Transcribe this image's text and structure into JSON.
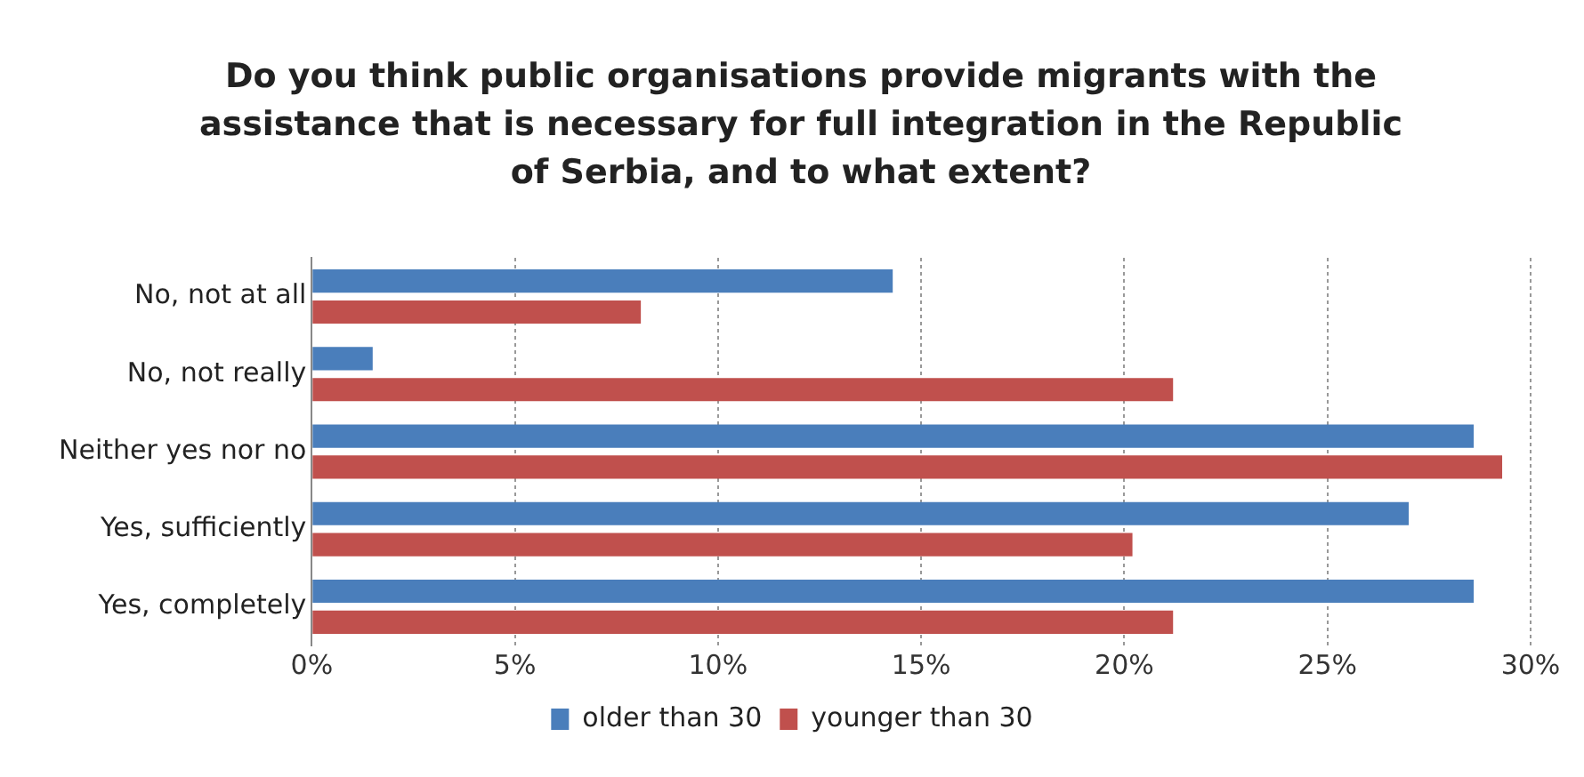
{
  "chart_data": {
    "type": "bar",
    "orientation": "horizontal",
    "title": "Do you think public organisations provide migrants with the assistance that is necessary for full integration in the Republic of Serbia, and to what extent?",
    "categories": [
      "No, not at all",
      "No, not really",
      "Neither yes nor no",
      "Yes, sufficiently",
      "Yes, completely"
    ],
    "series": [
      {
        "name": "older than 30",
        "color": "#4a7ebb",
        "values": [
          14.3,
          1.5,
          28.6,
          27.0,
          28.6
        ]
      },
      {
        "name": "younger than 30",
        "color": "#c0504d",
        "values": [
          8.1,
          21.2,
          29.3,
          20.2,
          21.2
        ]
      }
    ],
    "xlim": [
      0,
      30
    ],
    "xticks": [
      {
        "value": 0,
        "label": "0%"
      },
      {
        "value": 5,
        "label": "5%"
      },
      {
        "value": 10,
        "label": "10%"
      },
      {
        "value": 15,
        "label": "15%"
      },
      {
        "value": 20,
        "label": "20%"
      },
      {
        "value": 25,
        "label": "25%"
      },
      {
        "value": 30,
        "label": "30%"
      }
    ],
    "grid": "x",
    "legend": "bottom"
  }
}
